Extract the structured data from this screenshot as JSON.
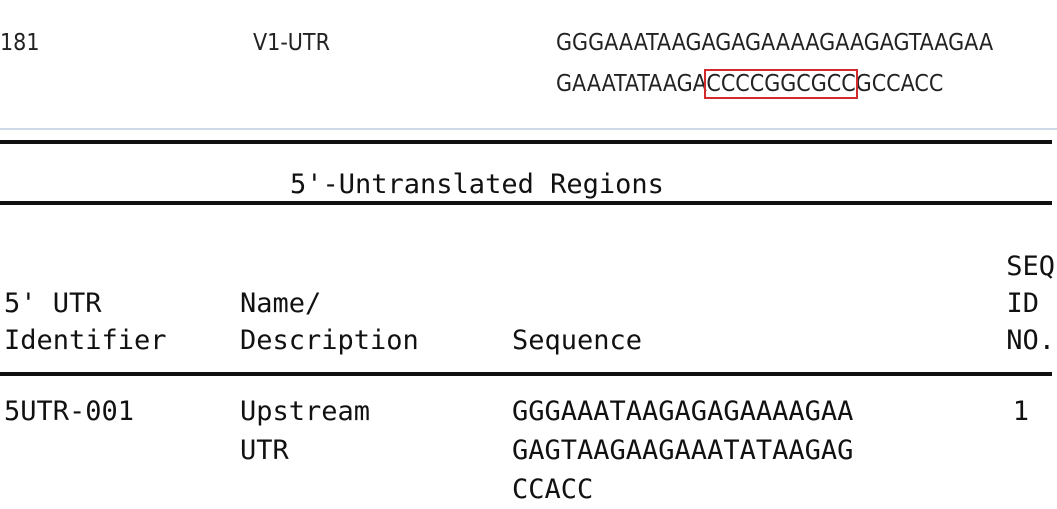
{
  "top_row": {
    "number": "181",
    "name": "V1-UTR",
    "seq_line1": "GGGAAATAAGAGAGAAAAGAAGAGTAAGAA",
    "seq_line2_pre": "GAAATATAAGA",
    "seq_line2_highlight": "CCCCGGCGCC",
    "seq_line2_post": "GCCACC",
    "highlight_color": "#d42a2a"
  },
  "table": {
    "title": "5'-Untranslated Regions",
    "headers": {
      "col1_line1": "5' UTR",
      "col1_line2": "Identifier",
      "col2_line1": "Name/",
      "col2_line2": "Description",
      "col3": "Sequence",
      "col4_line1": "SEQ",
      "col4_line2": "ID",
      "col4_line3": "NO."
    },
    "rows": [
      {
        "identifier": "5UTR-001",
        "name_line1": "Upstream",
        "name_line2": "UTR",
        "seq_line1": "GGGAAATAAGAGAGAAAAGAA",
        "seq_line2": "GAGTAAGAAGAAATATAAGAG",
        "seq_line3": "CCACC",
        "seq_id": "1"
      }
    ]
  }
}
